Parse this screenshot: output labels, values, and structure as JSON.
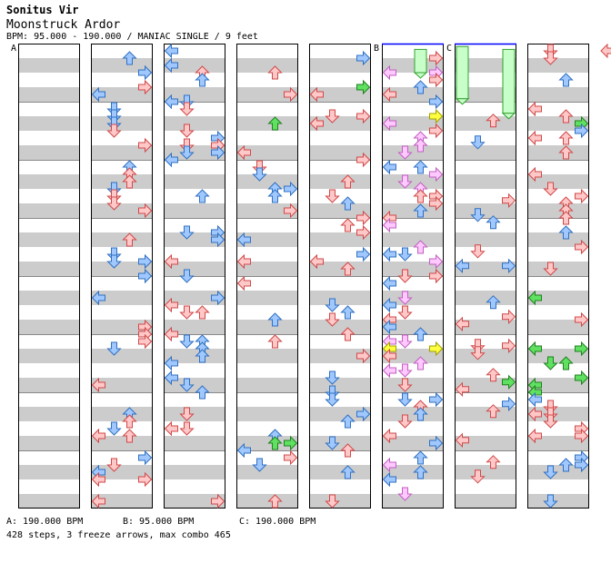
{
  "header": {
    "artist": "Sonitus Vir",
    "song": "Moonstruck Ardor",
    "meta": "BPM: 95.000 - 190.000 / MANIAC SINGLE / 9 feet"
  },
  "markers": [
    {
      "label": "A",
      "column": 0
    },
    {
      "label": "B",
      "column": 5
    },
    {
      "label": "C",
      "column": 6
    }
  ],
  "bpm_legend": [
    {
      "id": "a",
      "text": "A: 190.000 BPM"
    },
    {
      "id": "b",
      "text": "B: 95.000 BPM"
    },
    {
      "id": "c",
      "text": "C: 190.000 BPM"
    }
  ],
  "footer": {
    "summary": "428 steps, 3 freeze arrows, max combo 465"
  },
  "colors": {
    "stripe": "#cccccc",
    "column_border": "#000000",
    "page_background": "#ffffff",
    "bpm_change_line": "#0000ff",
    "arrow_red_fill": "#ffc8c8",
    "arrow_red_stroke": "#d04848",
    "arrow_blue_fill": "#a0c8ff",
    "arrow_blue_stroke": "#3070c0",
    "arrow_green_fill": "#60e060",
    "arrow_green_stroke": "#208020",
    "arrow_pink_fill": "#ffc8ff",
    "arrow_pink_stroke": "#c060c0",
    "arrow_yellow_fill": "#ffff40",
    "arrow_yellow_stroke": "#a0a000",
    "freeze_fill": "#c8ffc8",
    "freeze_stroke": "#30a030"
  },
  "chart_data": {
    "type": "step-chart",
    "title": "Moonstruck Ardor",
    "difficulty": "MANIAC SINGLE",
    "feet": 9,
    "bpm_min": 95,
    "bpm_max": 190,
    "columns": 8,
    "measures_per_column": 8,
    "steps": 428,
    "freeze_arrows": 3,
    "max_combo": 465,
    "bpm_changes": [
      {
        "label": "A",
        "column": 0,
        "measure": 0,
        "bpm": 190
      },
      {
        "label": "B",
        "column": 5,
        "measure": 0,
        "bpm": 95
      },
      {
        "label": "C",
        "column": 6,
        "measure": 0,
        "bpm": 190
      }
    ],
    "freezes": [
      {
        "column": 5,
        "lane": 2,
        "measure_start": 0.1,
        "measure_end": 0.5
      },
      {
        "column": 6,
        "lane": 0,
        "measure_start": 0.05,
        "measure_end": 0.95
      },
      {
        "column": 6,
        "lane": 3,
        "measure_start": 0.1,
        "measure_end": 1.2
      }
    ]
  }
}
